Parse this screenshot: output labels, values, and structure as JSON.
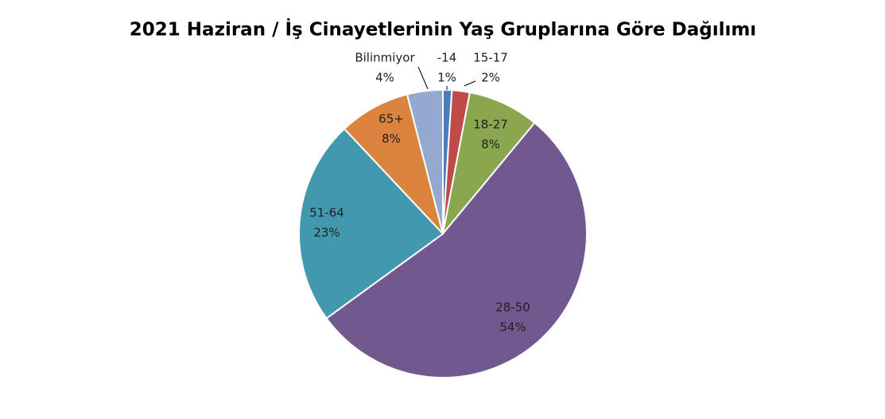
{
  "chart_data": {
    "type": "pie",
    "title": "2021 Haziran / İş Cinayetlerinin Yaş Gruplarına Göre Dağılımı",
    "categories": [
      "-14",
      "15-17",
      "18-27",
      "28-50",
      "51-64",
      "65+",
      "Bilinmiyor"
    ],
    "values": [
      1,
      2,
      8,
      54,
      23,
      8,
      4
    ],
    "value_labels": [
      "1%",
      "2%",
      "8%",
      "54%",
      "23%",
      "8%",
      "4%"
    ],
    "colors": [
      "#4a7ebb",
      "#be4b48",
      "#8aa64f",
      "#71588f",
      "#4198af",
      "#db843d",
      "#93a9cf"
    ]
  }
}
